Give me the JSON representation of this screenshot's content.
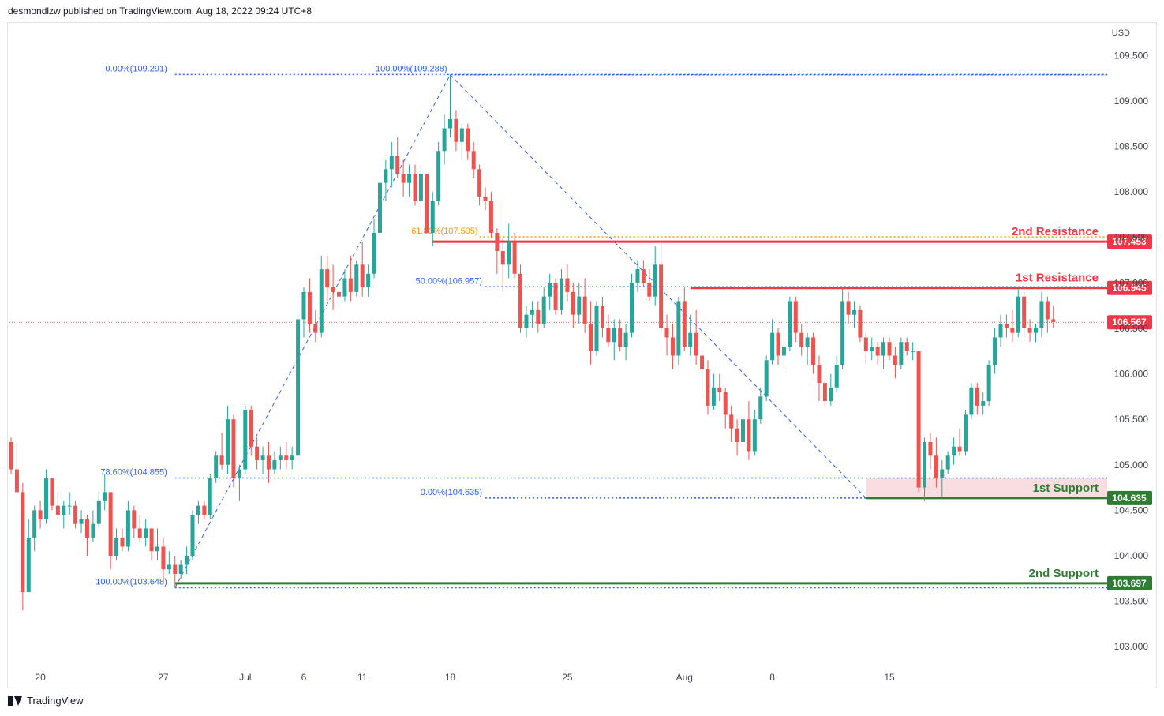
{
  "header": {
    "published_text": "desmondlzw published on TradingView.com, Aug 18, 2022 09:24 UTC+8"
  },
  "footer": {
    "brand": "TradingView"
  },
  "colors": {
    "up": "#26a69a",
    "down": "#ef5350",
    "resistance": "#f23645",
    "support": "#2e7d32",
    "fib": "#2962ff",
    "fib618": "#ff9800",
    "support_zone": "#f8d7da",
    "text": "#131722",
    "axis_text": "#434651"
  },
  "chart_data": {
    "type": "candlestick",
    "symbol_currency": "USD",
    "y_axis": {
      "min": 102.75,
      "max": 109.85,
      "ticks": [
        "103.000",
        "103.500",
        "104.000",
        "104.500",
        "105.000",
        "105.500",
        "106.000",
        "106.500",
        "107.000",
        "107.500",
        "108.000",
        "108.500",
        "109.000",
        "109.500"
      ],
      "tick_values": [
        103.0,
        103.5,
        104.0,
        104.5,
        105.0,
        105.5,
        106.0,
        106.5,
        107.0,
        107.5,
        108.0,
        108.5,
        109.0,
        109.5
      ]
    },
    "x_axis": {
      "labels": [
        "20",
        "27",
        "Jul",
        "6",
        "11",
        "18",
        "25",
        "Aug",
        "8",
        "15"
      ],
      "label_bar_index": [
        5,
        26,
        40,
        50,
        60,
        75,
        95,
        115,
        130,
        150
      ]
    },
    "price_labels": [
      {
        "text": "107.453",
        "value": 107.453,
        "color": "#f23645"
      },
      {
        "text": "106.945",
        "value": 106.945,
        "color": "#f23645"
      },
      {
        "text": "106.567",
        "value": 106.567,
        "color": "#f23645"
      },
      {
        "text": "104.635",
        "value": 104.635,
        "color": "#2e7d32"
      },
      {
        "text": "103.697",
        "value": 103.697,
        "color": "#2e7d32"
      }
    ],
    "horizontal_levels": [
      {
        "label": "2nd Resistance",
        "value": 107.453,
        "color": "#f23645",
        "from_bar": 72
      },
      {
        "label": "1st Resistance",
        "value": 106.945,
        "color": "#f23645",
        "from_bar": 116
      },
      {
        "label": "1st Support",
        "value": 104.635,
        "color": "#2e7d32",
        "from_bar": 146
      },
      {
        "label": "2nd Support",
        "value": 103.697,
        "color": "#2e7d32",
        "from_bar": 28
      }
    ],
    "support_zone": {
      "from": 104.635,
      "to": 104.855,
      "from_bar": 146
    },
    "current_price": 106.567,
    "fib_levels": [
      {
        "label": "0.00%(109.291)",
        "value": 109.291,
        "color": "#2962ff",
        "group": "upper"
      },
      {
        "label": "100.00%(109.288)",
        "value": 109.288,
        "color": "#2962ff",
        "group": "peak"
      },
      {
        "label": "61.80%(107.505)",
        "value": 107.505,
        "color": "#ff9800",
        "group": "mid"
      },
      {
        "label": "50.00%(106.957)",
        "value": 106.957,
        "color": "#2962ff",
        "group": "mid"
      },
      {
        "label": "78.60%(104.855)",
        "value": 104.855,
        "color": "#2962ff",
        "group": "lower"
      },
      {
        "label": "0.00%(104.635)",
        "value": 104.635,
        "color": "#2962ff",
        "group": "mid"
      },
      {
        "label": "100.00%(103.648)",
        "value": 103.648,
        "color": "#2962ff",
        "group": "lower"
      }
    ],
    "trend_lines": [
      {
        "from": [
          28,
          103.648
        ],
        "to": [
          75,
          109.288
        ]
      },
      {
        "from": [
          75,
          109.288
        ],
        "to": [
          146,
          104.635
        ]
      }
    ],
    "candles": [
      [
        105.25,
        105.3,
        104.9,
        104.95
      ],
      [
        104.95,
        105.25,
        104.7,
        104.7
      ],
      [
        104.7,
        104.8,
        103.4,
        103.6
      ],
      [
        103.6,
        104.4,
        103.6,
        104.2
      ],
      [
        104.2,
        104.55,
        104.05,
        104.5
      ],
      [
        104.5,
        104.6,
        104.3,
        104.4
      ],
      [
        104.4,
        104.95,
        104.35,
        104.85
      ],
      [
        104.85,
        104.85,
        104.5,
        104.55
      ],
      [
        104.55,
        104.7,
        104.4,
        104.45
      ],
      [
        104.45,
        104.6,
        104.3,
        104.55
      ],
      [
        104.55,
        104.7,
        104.45,
        104.55
      ],
      [
        104.55,
        104.6,
        104.3,
        104.35
      ],
      [
        104.35,
        104.5,
        104.25,
        104.4
      ],
      [
        104.4,
        104.45,
        104.0,
        104.2
      ],
      [
        104.2,
        104.5,
        104.15,
        104.35
      ],
      [
        104.35,
        104.7,
        104.3,
        104.6
      ],
      [
        104.6,
        104.9,
        104.5,
        104.7
      ],
      [
        104.7,
        104.7,
        103.85,
        104.0
      ],
      [
        104.0,
        104.3,
        103.95,
        104.2
      ],
      [
        104.2,
        104.3,
        104.05,
        104.1
      ],
      [
        104.1,
        104.6,
        104.05,
        104.5
      ],
      [
        104.5,
        104.55,
        104.2,
        104.3
      ],
      [
        104.3,
        104.45,
        104.15,
        104.2
      ],
      [
        104.2,
        104.4,
        104.1,
        104.3
      ],
      [
        104.3,
        104.3,
        103.95,
        104.05
      ],
      [
        104.05,
        104.3,
        103.95,
        104.1
      ],
      [
        104.1,
        104.2,
        103.7,
        103.85
      ],
      [
        103.85,
        104.05,
        103.8,
        103.9
      ],
      [
        103.9,
        104.0,
        103.65,
        103.8
      ],
      [
        103.8,
        103.95,
        103.75,
        103.9
      ],
      [
        103.9,
        104.1,
        103.8,
        104.0
      ],
      [
        104.0,
        104.5,
        103.95,
        104.45
      ],
      [
        104.45,
        104.6,
        104.35,
        104.55
      ],
      [
        104.55,
        104.6,
        104.4,
        104.45
      ],
      [
        104.45,
        104.9,
        104.4,
        104.85
      ],
      [
        104.85,
        105.15,
        104.8,
        105.1
      ],
      [
        105.1,
        105.35,
        104.95,
        105.0
      ],
      [
        105.0,
        105.65,
        104.9,
        105.5
      ],
      [
        105.5,
        105.55,
        104.75,
        104.85
      ],
      [
        104.85,
        105.0,
        104.6,
        104.95
      ],
      [
        104.95,
        105.65,
        104.9,
        105.6
      ],
      [
        105.6,
        105.65,
        105.1,
        105.2
      ],
      [
        105.2,
        105.3,
        104.95,
        105.05
      ],
      [
        105.05,
        105.2,
        104.9,
        105.1
      ],
      [
        105.1,
        105.25,
        104.8,
        104.95
      ],
      [
        104.95,
        105.15,
        104.9,
        105.05
      ],
      [
        105.05,
        105.2,
        104.95,
        105.1
      ],
      [
        105.1,
        105.25,
        104.95,
        105.05
      ],
      [
        105.05,
        105.2,
        104.95,
        105.1
      ],
      [
        105.1,
        106.65,
        105.05,
        106.6
      ],
      [
        106.6,
        106.95,
        106.4,
        106.9
      ],
      [
        106.9,
        107.05,
        106.45,
        106.55
      ],
      [
        106.55,
        106.7,
        106.35,
        106.45
      ],
      [
        106.45,
        107.3,
        106.4,
        107.15
      ],
      [
        107.15,
        107.3,
        106.8,
        106.95
      ],
      [
        106.95,
        107.2,
        106.7,
        106.9
      ],
      [
        106.9,
        107.05,
        106.75,
        106.85
      ],
      [
        106.85,
        107.15,
        106.8,
        107.05
      ],
      [
        107.05,
        107.3,
        106.8,
        106.9
      ],
      [
        106.9,
        107.25,
        106.85,
        107.2
      ],
      [
        107.2,
        107.45,
        106.85,
        106.95
      ],
      [
        106.95,
        107.2,
        106.85,
        107.1
      ],
      [
        107.1,
        107.7,
        107.05,
        107.55
      ],
      [
        107.55,
        108.2,
        107.5,
        108.1
      ],
      [
        108.1,
        108.35,
        107.9,
        108.25
      ],
      [
        108.25,
        108.55,
        108.05,
        108.4
      ],
      [
        108.4,
        108.6,
        108.15,
        108.2
      ],
      [
        108.2,
        108.35,
        107.95,
        108.1
      ],
      [
        108.1,
        108.3,
        107.95,
        108.2
      ],
      [
        108.2,
        108.3,
        107.85,
        107.9
      ],
      [
        107.9,
        108.3,
        107.7,
        108.2
      ],
      [
        108.2,
        108.2,
        107.55,
        107.55
      ],
      [
        107.55,
        108.0,
        107.4,
        107.9
      ],
      [
        107.9,
        108.55,
        107.85,
        108.45
      ],
      [
        108.45,
        108.85,
        108.3,
        108.7
      ],
      [
        108.7,
        109.29,
        108.6,
        108.8
      ],
      [
        108.8,
        108.9,
        108.45,
        108.55
      ],
      [
        108.55,
        108.75,
        108.35,
        108.7
      ],
      [
        108.7,
        108.75,
        108.35,
        108.45
      ],
      [
        108.45,
        108.55,
        108.15,
        108.25
      ],
      [
        108.25,
        108.3,
        107.85,
        107.95
      ],
      [
        107.95,
        108.05,
        107.8,
        107.9
      ],
      [
        107.9,
        108.0,
        107.5,
        107.55
      ],
      [
        107.55,
        107.6,
        107.1,
        107.35
      ],
      [
        107.35,
        107.5,
        106.9,
        107.2
      ],
      [
        107.2,
        107.65,
        107.05,
        107.45
      ],
      [
        107.45,
        107.55,
        107.05,
        107.1
      ],
      [
        107.1,
        107.2,
        106.45,
        106.5
      ],
      [
        106.5,
        106.75,
        106.4,
        106.65
      ],
      [
        106.65,
        106.8,
        106.5,
        106.7
      ],
      [
        106.7,
        106.8,
        106.45,
        106.55
      ],
      [
        106.55,
        106.95,
        106.5,
        106.85
      ],
      [
        106.85,
        107.1,
        106.7,
        107.0
      ],
      [
        107.0,
        107.05,
        106.65,
        106.7
      ],
      [
        106.7,
        107.15,
        106.65,
        107.05
      ],
      [
        107.05,
        107.2,
        106.8,
        106.9
      ],
      [
        106.9,
        107.0,
        106.5,
        106.65
      ],
      [
        106.65,
        107.0,
        106.55,
        106.85
      ],
      [
        106.85,
        107.05,
        106.45,
        106.55
      ],
      [
        106.55,
        106.8,
        106.1,
        106.25
      ],
      [
        106.25,
        106.8,
        106.2,
        106.75
      ],
      [
        106.75,
        106.85,
        106.4,
        106.5
      ],
      [
        106.5,
        106.65,
        106.3,
        106.35
      ],
      [
        106.35,
        106.6,
        106.15,
        106.5
      ],
      [
        106.5,
        106.6,
        106.25,
        106.3
      ],
      [
        106.3,
        106.55,
        106.15,
        106.45
      ],
      [
        106.45,
        107.1,
        106.4,
        107.0
      ],
      [
        107.0,
        107.25,
        106.9,
        107.15
      ],
      [
        107.15,
        107.25,
        106.95,
        107.0
      ],
      [
        107.0,
        107.15,
        106.8,
        106.85
      ],
      [
        106.85,
        107.4,
        106.75,
        107.2
      ],
      [
        107.2,
        107.45,
        106.45,
        106.5
      ],
      [
        106.5,
        106.65,
        106.2,
        106.4
      ],
      [
        106.4,
        106.55,
        106.05,
        106.2
      ],
      [
        106.2,
        106.85,
        106.1,
        106.8
      ],
      [
        106.8,
        106.95,
        106.25,
        106.3
      ],
      [
        106.3,
        106.65,
        106.2,
        106.45
      ],
      [
        106.45,
        106.7,
        106.1,
        106.2
      ],
      [
        106.2,
        106.25,
        105.8,
        106.05
      ],
      [
        106.05,
        106.15,
        105.55,
        105.65
      ],
      [
        105.65,
        106.0,
        105.6,
        105.85
      ],
      [
        105.85,
        106.0,
        105.7,
        105.8
      ],
      [
        105.8,
        105.85,
        105.4,
        105.55
      ],
      [
        105.55,
        105.65,
        105.25,
        105.4
      ],
      [
        105.4,
        105.5,
        105.1,
        105.25
      ],
      [
        105.25,
        105.6,
        105.2,
        105.5
      ],
      [
        105.5,
        105.7,
        105.05,
        105.15
      ],
      [
        105.15,
        105.6,
        105.1,
        105.5
      ],
      [
        105.5,
        105.85,
        105.45,
        105.75
      ],
      [
        105.75,
        106.2,
        105.7,
        106.15
      ],
      [
        106.15,
        106.6,
        106.1,
        106.45
      ],
      [
        106.45,
        106.5,
        106.1,
        106.2
      ],
      [
        106.2,
        106.55,
        106.05,
        106.3
      ],
      [
        106.3,
        106.85,
        106.25,
        106.8
      ],
      [
        106.8,
        106.85,
        106.35,
        106.45
      ],
      [
        106.45,
        106.55,
        106.2,
        106.3
      ],
      [
        106.3,
        106.45,
        106.1,
        106.4
      ],
      [
        106.4,
        106.45,
        106.0,
        106.1
      ],
      [
        106.1,
        106.2,
        105.7,
        105.9
      ],
      [
        105.9,
        105.95,
        105.65,
        105.7
      ],
      [
        105.7,
        106.0,
        105.65,
        105.85
      ],
      [
        105.85,
        106.2,
        105.8,
        106.1
      ],
      [
        106.1,
        106.95,
        106.05,
        106.8
      ],
      [
        106.8,
        106.9,
        106.55,
        106.65
      ],
      [
        106.65,
        106.8,
        106.5,
        106.7
      ],
      [
        106.7,
        106.75,
        106.35,
        106.4
      ],
      [
        106.4,
        106.45,
        106.1,
        106.25
      ],
      [
        106.25,
        106.4,
        106.15,
        106.3
      ],
      [
        106.3,
        106.35,
        106.1,
        106.2
      ],
      [
        106.2,
        106.4,
        106.05,
        106.35
      ],
      [
        106.35,
        106.4,
        106.15,
        106.2
      ],
      [
        106.2,
        106.3,
        105.95,
        106.1
      ],
      [
        106.1,
        106.4,
        106.05,
        106.35
      ],
      [
        106.35,
        106.4,
        106.2,
        106.25
      ],
      [
        106.25,
        106.35,
        106.15,
        106.25
      ],
      [
        106.25,
        106.25,
        104.7,
        104.75
      ],
      [
        104.75,
        105.3,
        104.6,
        105.25
      ],
      [
        105.25,
        105.35,
        104.95,
        105.1
      ],
      [
        105.1,
        105.3,
        104.75,
        104.85
      ],
      [
        104.85,
        105.05,
        104.65,
        104.95
      ],
      [
        104.95,
        105.15,
        104.9,
        105.1
      ],
      [
        105.1,
        105.3,
        105.0,
        105.2
      ],
      [
        105.2,
        105.4,
        105.1,
        105.15
      ],
      [
        105.15,
        105.6,
        105.1,
        105.55
      ],
      [
        105.55,
        105.9,
        105.5,
        105.85
      ],
      [
        105.85,
        105.9,
        105.55,
        105.65
      ],
      [
        105.65,
        105.8,
        105.55,
        105.7
      ],
      [
        105.7,
        106.15,
        105.65,
        106.1
      ],
      [
        106.1,
        106.5,
        106.0,
        106.4
      ],
      [
        106.4,
        106.65,
        106.3,
        106.55
      ],
      [
        106.55,
        106.65,
        106.4,
        106.5
      ],
      [
        106.5,
        106.7,
        106.35,
        106.45
      ],
      [
        106.45,
        106.95,
        106.4,
        106.85
      ],
      [
        106.85,
        106.9,
        106.4,
        106.5
      ],
      [
        106.5,
        106.6,
        106.35,
        106.45
      ],
      [
        106.45,
        106.55,
        106.35,
        106.5
      ],
      [
        106.5,
        106.9,
        106.4,
        106.8
      ],
      [
        106.8,
        106.85,
        106.45,
        106.6
      ],
      [
        106.6,
        106.75,
        106.5,
        106.57
      ]
    ]
  }
}
